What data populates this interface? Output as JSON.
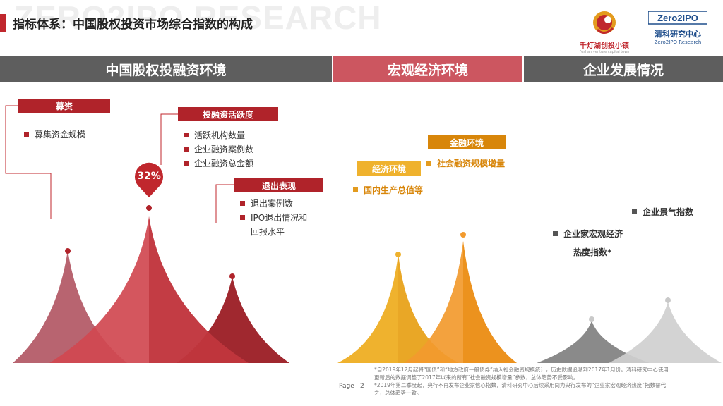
{
  "watermark": "ZERO2IPO RESEARCH",
  "title": "指标体系：中国股权投资市场综合指数的构成",
  "logos": {
    "left_name": "千灯湖创投小镇",
    "left_sub": "Foshan venture capital town",
    "right_brand": "Zero2IPO",
    "right_name": "清科研究中心",
    "right_sub": "Zero2IPO Research"
  },
  "bands": [
    "中国股权投融资环境",
    "宏观经济环境",
    "企业发展情况"
  ],
  "section1": {
    "fundraising": {
      "label": "募资",
      "items": [
        "募集资金规模"
      ]
    },
    "activity": {
      "label": "投融资活跃度",
      "items": [
        "活跃机构数量",
        "企业融资案例数",
        "企业融资总金额"
      ]
    },
    "exit": {
      "label": "退出表现",
      "items": [
        "退出案例数",
        "IPO退出情况和",
        "回报水平"
      ]
    },
    "percent": "32%"
  },
  "section2": {
    "economy": {
      "label": "经济环境",
      "items": [
        "国内生产总值等"
      ]
    },
    "finance": {
      "label": "金融环境",
      "items": [
        "社会融资规模增量"
      ]
    }
  },
  "section3": {
    "items": [
      "企业景气指数",
      "企业家宏观经济",
      "热度指数*"
    ]
  },
  "footnotes": [
    "*自2019年12月起将“国债”和“地方政府一般债券”纳入社会融资规模统计，历史数据追溯到2017年1月份。清科研究中心使用",
    "更新后的数据调整了2017年以来的所有“社会融资规模增量”参数，总体趋势不受影响。",
    "*2019年第二季度起，央行不再发布企业家信心指数，清科研究中心后续采用同为央行发布的“企业家宏观经济热度”指数替代",
    "之，总体趋势一致。"
  ],
  "page": {
    "label": "Page",
    "number": "2"
  },
  "colors": {
    "red_dark": "#b0232a",
    "red_mid": "#cc4048",
    "red_light": "#b86470",
    "orange": "#e8870a",
    "yellow": "#efb22e",
    "gray_dark": "#8a8a8a",
    "gray_light": "#cfcfcf",
    "band_gray": "#5e5e5e",
    "band_pink": "#cc5660"
  }
}
